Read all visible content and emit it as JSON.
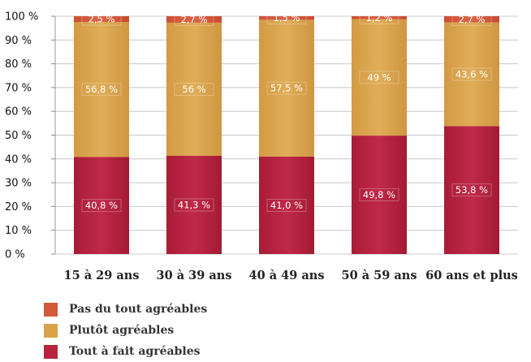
{
  "chart_data": {
    "type": "bar",
    "stacked": true,
    "categories": [
      "15 à 29 ans",
      "30 à 39 ans",
      "40 à 49 ans",
      "50 à 59 ans",
      "60 ans et plus"
    ],
    "series": [
      {
        "name": "Tout à fait agréables",
        "values": [
          40.8,
          41.3,
          41.0,
          49.8,
          53.8
        ],
        "labels": [
          "40,8 %",
          "41,3 %",
          "41,0 %",
          "49,8 %",
          "53,8 %"
        ],
        "color": "#b8243e"
      },
      {
        "name": "Plutôt agréables",
        "values": [
          56.8,
          56,
          57.5,
          49,
          43.6
        ],
        "labels": [
          "56,8 %",
          "56 %",
          "57,5 %",
          "49 %",
          "43,6 %"
        ],
        "color": "#d9a24a"
      },
      {
        "name": "Pas du tout agréables",
        "values": [
          2.5,
          2.7,
          1.5,
          1.2,
          2.7
        ],
        "labels": [
          "2,5 %",
          "2,7 %",
          "1,5 %",
          "1,2 %",
          "2,7 %"
        ],
        "color": "#d4583a"
      }
    ],
    "ylim": [
      0,
      100
    ],
    "yticks": [
      0,
      10,
      20,
      30,
      40,
      50,
      60,
      70,
      80,
      90,
      100
    ],
    "ytick_labels": [
      "0 %",
      "10 %",
      "20 %",
      "30 %",
      "40 %",
      "50 %",
      "60 %",
      "70 %",
      "80 %",
      "90 %",
      "100 %"
    ],
    "grid": true,
    "legend_order": [
      "Pas du tout agréables",
      "Plutôt agréables",
      "Tout à fait agréables"
    ],
    "legend_position": "bottom-left"
  }
}
